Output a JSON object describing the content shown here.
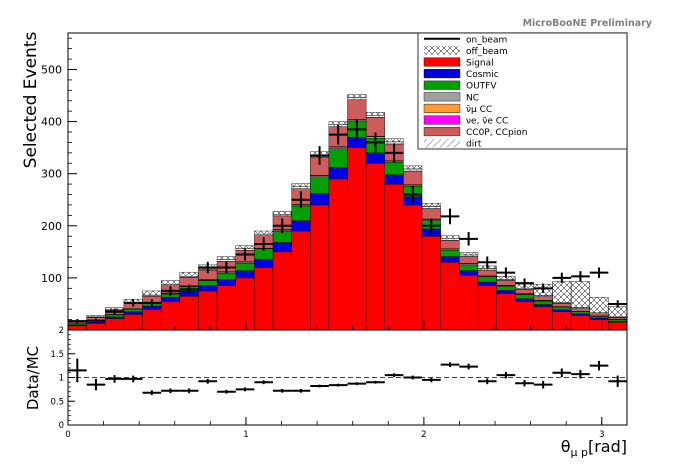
{
  "chart_data": {
    "type": "bar",
    "stacked": true,
    "watermark": "MicroBooNE Preliminary",
    "ylabel": "Selected Events",
    "ratio_ylabel": "Data/MC",
    "xlabel": {
      "base": "θ",
      "sub": "μ p",
      "unit": "[rad]"
    },
    "xlim": [
      0,
      3.14159
    ],
    "ylim": [
      0,
      570
    ],
    "ratio_ylim": [
      0,
      2
    ],
    "x_ticks": [
      "0",
      "1",
      "2",
      "3"
    ],
    "y_ticks": [
      "100",
      "200",
      "300",
      "400",
      "500"
    ],
    "ratio_y_ticks": [
      "0",
      "0.5",
      "1",
      "1.5",
      "2"
    ],
    "bin_width": 0.10472,
    "categories": [
      "0.05",
      "0.16",
      "0.26",
      "0.37",
      "0.47",
      "0.58",
      "0.68",
      "0.79",
      "0.89",
      "0.99",
      "1.10",
      "1.20",
      "1.31",
      "1.41",
      "1.52",
      "1.62",
      "1.73",
      "1.83",
      "1.94",
      "2.04",
      "2.15",
      "2.25",
      "2.36",
      "2.46",
      "2.57",
      "2.67",
      "2.78",
      "2.88",
      "2.98",
      "3.09"
    ],
    "series": [
      {
        "name": "Signal",
        "color": "#ff0000",
        "values": [
          8,
          13,
          22,
          30,
          40,
          55,
          65,
          75,
          85,
          100,
          120,
          150,
          190,
          240,
          290,
          350,
          320,
          280,
          240,
          180,
          130,
          105,
          85,
          70,
          55,
          45,
          35,
          28,
          20,
          15
        ]
      },
      {
        "name": "Cosmic",
        "color": "#0000e0",
        "values": [
          2,
          2,
          3,
          5,
          6,
          8,
          10,
          10,
          12,
          14,
          16,
          18,
          20,
          22,
          22,
          20,
          20,
          18,
          16,
          14,
          11,
          9,
          7,
          6,
          5,
          4,
          4,
          3,
          3,
          2
        ]
      },
      {
        "name": "OUTFV",
        "color": "#00a000",
        "values": [
          2,
          3,
          4,
          5,
          6,
          6,
          8,
          10,
          12,
          14,
          18,
          22,
          28,
          32,
          36,
          30,
          28,
          24,
          20,
          16,
          12,
          11,
          10,
          8,
          8,
          6,
          5,
          4,
          3,
          3
        ]
      },
      {
        "name": "NC",
        "color": "#a0a0a0",
        "values": [
          0,
          1,
          1,
          1,
          1,
          1,
          1,
          1,
          2,
          2,
          2,
          2,
          2,
          2,
          3,
          3,
          3,
          2,
          2,
          2,
          2,
          2,
          1,
          1,
          1,
          1,
          1,
          1,
          1,
          1
        ]
      },
      {
        "name": "ν̄μ CC",
        "color": "#ff9933",
        "values": [
          0,
          0,
          0,
          0,
          0,
          1,
          1,
          1,
          1,
          1,
          1,
          1,
          1,
          1,
          1,
          1,
          1,
          1,
          1,
          1,
          1,
          1,
          1,
          1,
          1,
          1,
          0,
          0,
          0,
          0
        ]
      },
      {
        "name": "νe, ν̄e CC",
        "color": "#ff00ff",
        "values": [
          0,
          0,
          0,
          0,
          0,
          0,
          0,
          0,
          0,
          0,
          0,
          0,
          0,
          0,
          0,
          0,
          0,
          0,
          0,
          0,
          0,
          0,
          0,
          0,
          0,
          0,
          0,
          0,
          0,
          0
        ]
      },
      {
        "name": "CC0P, CCpion",
        "color": "#cd5c5c",
        "values": [
          3,
          5,
          8,
          10,
          12,
          14,
          16,
          18,
          20,
          22,
          24,
          26,
          30,
          35,
          38,
          38,
          36,
          32,
          26,
          20,
          16,
          13,
          11,
          9,
          8,
          7,
          6,
          5,
          4,
          3
        ]
      },
      {
        "name": "dirt",
        "color": "#ffffff",
        "hatch": "single",
        "values": [
          1,
          1,
          1,
          2,
          2,
          2,
          2,
          2,
          3,
          3,
          3,
          3,
          4,
          4,
          4,
          4,
          4,
          4,
          4,
          4,
          3,
          3,
          3,
          2,
          2,
          2,
          2,
          2,
          2,
          1
        ]
      },
      {
        "name": "off_beam",
        "color": "#ffffff",
        "hatch": "cross",
        "values": [
          2,
          3,
          4,
          6,
          8,
          8,
          8,
          8,
          6,
          6,
          6,
          6,
          6,
          6,
          6,
          6,
          6,
          6,
          6,
          6,
          6,
          5,
          5,
          6,
          8,
          22,
          40,
          50,
          30,
          20
        ]
      }
    ],
    "data": {
      "name": "on_beam",
      "values": [
        17,
        18,
        35,
        52,
        52,
        75,
        78,
        120,
        120,
        145,
        165,
        200,
        250,
        335,
        375,
        385,
        360,
        340,
        260,
        200,
        218,
        175,
        130,
        110,
        90,
        80,
        100,
        103,
        110,
        50
      ],
      "errors": [
        4,
        4,
        6,
        7,
        7,
        9,
        9,
        11,
        11,
        12,
        13,
        14,
        16,
        18,
        19,
        20,
        19,
        18,
        16,
        14,
        15,
        13,
        11,
        10,
        9,
        9,
        10,
        10,
        10,
        7
      ]
    },
    "ratio": {
      "values": [
        1.15,
        0.85,
        0.97,
        0.97,
        0.68,
        0.72,
        0.72,
        0.92,
        0.7,
        0.75,
        0.9,
        0.72,
        0.72,
        0.82,
        0.84,
        0.87,
        0.9,
        1.05,
        1.0,
        0.95,
        1.27,
        1.23,
        0.92,
        1.05,
        0.88,
        0.85,
        1.1,
        1.07,
        1.25,
        0.92
      ],
      "errors": [
        0.25,
        0.12,
        0.08,
        0.07,
        0.05,
        0.05,
        0.05,
        0.05,
        0.04,
        0.04,
        0.04,
        0.04,
        0.04,
        0.03,
        0.03,
        0.03,
        0.03,
        0.04,
        0.04,
        0.05,
        0.05,
        0.06,
        0.06,
        0.07,
        0.07,
        0.08,
        0.09,
        0.09,
        0.1,
        0.12
      ],
      "reference": 1.0
    },
    "legend_position": "top-right",
    "legend": [
      "on_beam",
      "off_beam",
      "Signal",
      "Cosmic",
      "OUTFV",
      "NC",
      "ν̄μ CC",
      "νe, ν̄e CC",
      "CC0P, CCpion",
      "dirt"
    ]
  }
}
